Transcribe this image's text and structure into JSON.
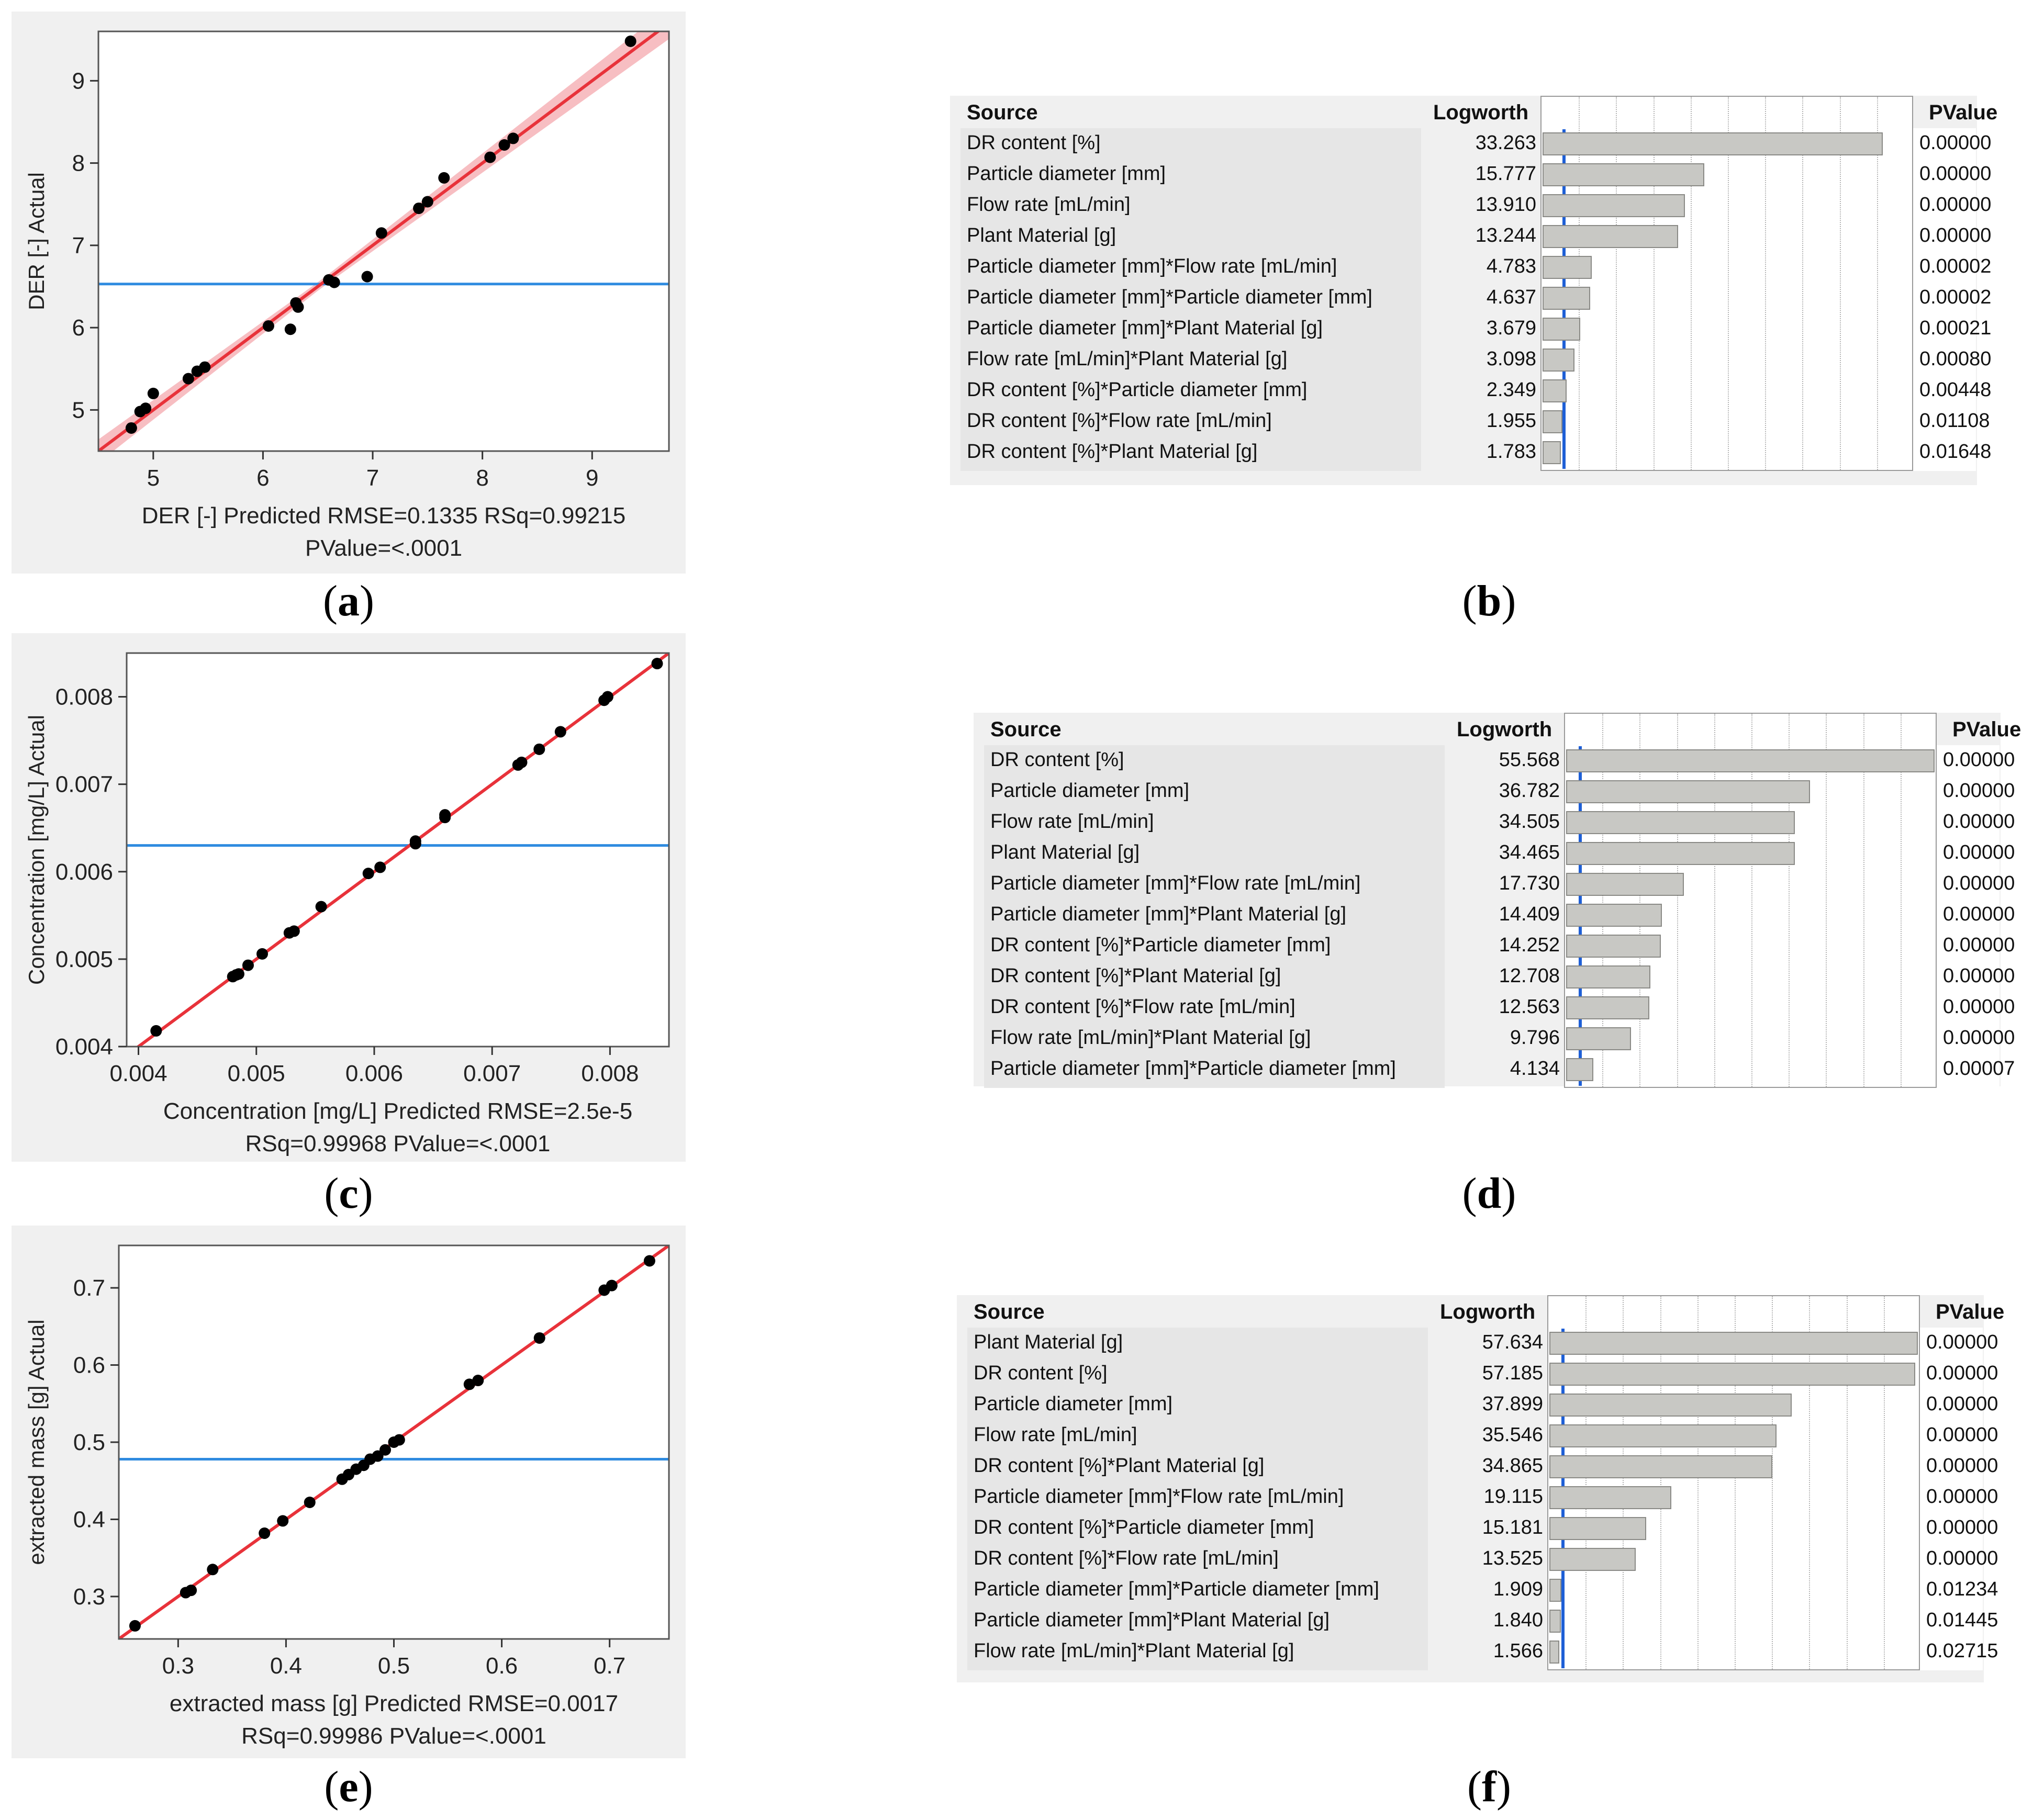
{
  "chart_data": [
    {
      "panel": "a",
      "type": "scatter",
      "ylabel": "DER [-] Actual",
      "xlabel": "DER [-] Predicted",
      "stats_line1": "DER [-] Predicted RMSE=0.1335 RSq=0.99215",
      "stats_line2": "PValue=<.0001",
      "xlim": [
        4.5,
        9.7
      ],
      "ylim": [
        4.5,
        9.6
      ],
      "xticks": [
        5,
        6,
        7,
        8,
        9
      ],
      "yticks": [
        5,
        6,
        7,
        8,
        9
      ],
      "mean_line": 6.53,
      "fit_line": [
        [
          4.5,
          4.5
        ],
        [
          9.7,
          9.7
        ]
      ],
      "confidence_band": true,
      "points": [
        [
          4.8,
          4.78
        ],
        [
          4.88,
          4.98
        ],
        [
          4.93,
          5.02
        ],
        [
          5.0,
          5.2
        ],
        [
          5.32,
          5.38
        ],
        [
          5.4,
          5.47
        ],
        [
          5.47,
          5.52
        ],
        [
          6.05,
          6.02
        ],
        [
          6.25,
          5.98
        ],
        [
          6.3,
          6.3
        ],
        [
          6.32,
          6.25
        ],
        [
          6.6,
          6.58
        ],
        [
          6.65,
          6.55
        ],
        [
          6.95,
          6.62
        ],
        [
          7.08,
          7.15
        ],
        [
          7.42,
          7.45
        ],
        [
          7.5,
          7.53
        ],
        [
          7.65,
          7.82
        ],
        [
          8.07,
          8.07
        ],
        [
          8.2,
          8.22
        ],
        [
          8.28,
          8.3
        ],
        [
          9.35,
          9.48
        ]
      ]
    },
    {
      "panel": "c",
      "type": "scatter",
      "ylabel": "Concentration [mg/L] Actual",
      "xlabel": "Concentration [mg/L] Predicted",
      "stats_line1": "Concentration [mg/L] Predicted RMSE=2.5e-5",
      "stats_line2": "RSq=0.99968 PValue=<.0001",
      "xlim": [
        0.0039,
        0.0085
      ],
      "ylim": [
        0.004,
        0.0085
      ],
      "xticks": [
        "0.004",
        "0.005",
        "0.006",
        "0.007",
        "0.008"
      ],
      "xtick_values": [
        0.004,
        0.005,
        0.006,
        0.007,
        0.008
      ],
      "yticks": [
        "0.004",
        "0.005",
        "0.006",
        "0.007",
        "0.008"
      ],
      "ytick_values": [
        0.004,
        0.005,
        0.006,
        0.007,
        0.008
      ],
      "mean_line": 0.0063,
      "fit_line": [
        [
          0.0039,
          0.0039
        ],
        [
          0.0085,
          0.0085
        ]
      ],
      "confidence_band": false,
      "points": [
        [
          0.00415,
          0.00418
        ],
        [
          0.0048,
          0.0048
        ],
        [
          0.00483,
          0.00482
        ],
        [
          0.00485,
          0.00483
        ],
        [
          0.00493,
          0.00493
        ],
        [
          0.00505,
          0.00506
        ],
        [
          0.00528,
          0.0053
        ],
        [
          0.00532,
          0.00532
        ],
        [
          0.00555,
          0.0056
        ],
        [
          0.00595,
          0.00598
        ],
        [
          0.00605,
          0.00605
        ],
        [
          0.00635,
          0.00632
        ],
        [
          0.00635,
          0.00635
        ],
        [
          0.0066,
          0.00662
        ],
        [
          0.0066,
          0.00665
        ],
        [
          0.00722,
          0.00722
        ],
        [
          0.00725,
          0.00725
        ],
        [
          0.0074,
          0.0074
        ],
        [
          0.00758,
          0.0076
        ],
        [
          0.00795,
          0.00796
        ],
        [
          0.00798,
          0.008
        ],
        [
          0.0084,
          0.00838
        ]
      ]
    },
    {
      "panel": "e",
      "type": "scatter",
      "ylabel": "extracted mass [g] Actual",
      "xlabel": "extracted mass [g] Predicted",
      "stats_line1": "extracted mass [g] Predicted RMSE=0.0017",
      "stats_line2": "RSq=0.99986 PValue=<.0001",
      "xlim": [
        0.245,
        0.755
      ],
      "ylim": [
        0.245,
        0.755
      ],
      "xticks": [
        "0.3",
        "0.4",
        "0.5",
        "0.6",
        "0.7"
      ],
      "xtick_values": [
        0.3,
        0.4,
        0.5,
        0.6,
        0.7
      ],
      "yticks": [
        "0.3",
        "0.4",
        "0.5",
        "0.6",
        "0.7"
      ],
      "ytick_values": [
        0.3,
        0.4,
        0.5,
        0.6,
        0.7
      ],
      "mean_line": 0.478,
      "fit_line": [
        [
          0.245,
          0.245
        ],
        [
          0.755,
          0.755
        ]
      ],
      "confidence_band": false,
      "points": [
        [
          0.26,
          0.262
        ],
        [
          0.307,
          0.305
        ],
        [
          0.312,
          0.308
        ],
        [
          0.332,
          0.335
        ],
        [
          0.38,
          0.382
        ],
        [
          0.397,
          0.398
        ],
        [
          0.422,
          0.422
        ],
        [
          0.452,
          0.452
        ],
        [
          0.458,
          0.458
        ],
        [
          0.465,
          0.465
        ],
        [
          0.472,
          0.47
        ],
        [
          0.478,
          0.478
        ],
        [
          0.485,
          0.482
        ],
        [
          0.492,
          0.49
        ],
        [
          0.5,
          0.5
        ],
        [
          0.505,
          0.503
        ],
        [
          0.57,
          0.575
        ],
        [
          0.578,
          0.58
        ],
        [
          0.635,
          0.635
        ],
        [
          0.695,
          0.697
        ],
        [
          0.702,
          0.703
        ],
        [
          0.737,
          0.735
        ]
      ]
    },
    {
      "panel": "b",
      "type": "table",
      "headers": {
        "source": "Source",
        "logworth": "Logworth",
        "pvalue": "PValue"
      },
      "bar_max": 36,
      "rows": [
        {
          "source": "DR content [%]",
          "logworth": "33.263",
          "value": 33.263,
          "pvalue": "0.00000"
        },
        {
          "source": "Particle diameter [mm]",
          "logworth": "15.777",
          "value": 15.777,
          "pvalue": "0.00000"
        },
        {
          "source": "Flow rate [mL/min]",
          "logworth": "13.910",
          "value": 13.91,
          "pvalue": "0.00000"
        },
        {
          "source": "Plant Material [g]",
          "logworth": "13.244",
          "value": 13.244,
          "pvalue": "0.00000"
        },
        {
          "source": "Particle diameter [mm]*Flow rate [mL/min]",
          "logworth": "4.783",
          "value": 4.783,
          "pvalue": "0.00002"
        },
        {
          "source": "Particle diameter [mm]*Particle diameter [mm]",
          "logworth": "4.637",
          "value": 4.637,
          "pvalue": "0.00002"
        },
        {
          "source": "Particle diameter [mm]*Plant Material [g]",
          "logworth": "3.679",
          "value": 3.679,
          "pvalue": "0.00021"
        },
        {
          "source": "Flow rate [mL/min]*Plant Material [g]",
          "logworth": "3.098",
          "value": 3.098,
          "pvalue": "0.00080"
        },
        {
          "source": "DR content [%]*Particle diameter [mm]",
          "logworth": "2.349",
          "value": 2.349,
          "pvalue": "0.00448"
        },
        {
          "source": "DR content [%]*Flow rate [mL/min]",
          "logworth": "1.955",
          "value": 1.955,
          "pvalue": "0.01108"
        },
        {
          "source": "DR content [%]*Plant Material [g]",
          "logworth": "1.783",
          "value": 1.783,
          "pvalue": "0.01648"
        }
      ]
    },
    {
      "panel": "d",
      "type": "table",
      "headers": {
        "source": "Source",
        "logworth": "Logworth",
        "pvalue": "PValue"
      },
      "bar_max": 55.568,
      "rows": [
        {
          "source": "DR content [%]",
          "logworth": "55.568",
          "value": 55.568,
          "pvalue": "0.00000"
        },
        {
          "source": "Particle diameter [mm]",
          "logworth": "36.782",
          "value": 36.782,
          "pvalue": "0.00000"
        },
        {
          "source": "Flow rate [mL/min]",
          "logworth": "34.505",
          "value": 34.505,
          "pvalue": "0.00000"
        },
        {
          "source": "Plant Material [g]",
          "logworth": "34.465",
          "value": 34.465,
          "pvalue": "0.00000"
        },
        {
          "source": "Particle diameter [mm]*Flow rate [mL/min]",
          "logworth": "17.730",
          "value": 17.73,
          "pvalue": "0.00000"
        },
        {
          "source": "Particle diameter [mm]*Plant Material [g]",
          "logworth": "14.409",
          "value": 14.409,
          "pvalue": "0.00000"
        },
        {
          "source": "DR content [%]*Particle diameter [mm]",
          "logworth": "14.252",
          "value": 14.252,
          "pvalue": "0.00000"
        },
        {
          "source": "DR content [%]*Plant Material [g]",
          "logworth": "12.708",
          "value": 12.708,
          "pvalue": "0.00000"
        },
        {
          "source": "DR content [%]*Flow rate [mL/min]",
          "logworth": "12.563",
          "value": 12.563,
          "pvalue": "0.00000"
        },
        {
          "source": "Flow rate [mL/min]*Plant Material [g]",
          "logworth": "9.796",
          "value": 9.796,
          "pvalue": "0.00000"
        },
        {
          "source": "Particle diameter [mm]*Particle diameter [mm]",
          "logworth": "4.134",
          "value": 4.134,
          "pvalue": "0.00007"
        }
      ]
    },
    {
      "panel": "f",
      "type": "table",
      "headers": {
        "source": "Source",
        "logworth": "Logworth",
        "pvalue": "PValue"
      },
      "bar_max": 57.634,
      "rows": [
        {
          "source": "Plant Material [g]",
          "logworth": "57.634",
          "value": 57.634,
          "pvalue": "0.00000"
        },
        {
          "source": "DR content [%]",
          "logworth": "57.185",
          "value": 57.185,
          "pvalue": "0.00000"
        },
        {
          "source": "Particle diameter [mm]",
          "logworth": "37.899",
          "value": 37.899,
          "pvalue": "0.00000"
        },
        {
          "source": "Flow rate [mL/min]",
          "logworth": "35.546",
          "value": 35.546,
          "pvalue": "0.00000"
        },
        {
          "source": "DR content [%]*Plant Material [g]",
          "logworth": "34.865",
          "value": 34.865,
          "pvalue": "0.00000"
        },
        {
          "source": "Particle diameter [mm]*Flow rate [mL/min]",
          "logworth": "19.115",
          "value": 19.115,
          "pvalue": "0.00000"
        },
        {
          "source": "DR content [%]*Particle diameter [mm]",
          "logworth": "15.181",
          "value": 15.181,
          "pvalue": "0.00000"
        },
        {
          "source": "DR content [%]*Flow rate [mL/min]",
          "logworth": "13.525",
          "value": 13.525,
          "pvalue": "0.00000"
        },
        {
          "source": "Particle diameter [mm]*Particle diameter [mm]",
          "logworth": "1.909",
          "value": 1.909,
          "pvalue": "0.01234"
        },
        {
          "source": "Particle diameter [mm]*Plant Material [g]",
          "logworth": "1.840",
          "value": 1.84,
          "pvalue": "0.01445"
        },
        {
          "source": "Flow rate [mL/min]*Plant Material [g]",
          "logworth": "1.566",
          "value": 1.566,
          "pvalue": "0.02715"
        }
      ]
    }
  ],
  "panel_labels": {
    "a": "a",
    "b": "b",
    "c": "c",
    "d": "d",
    "e": "e",
    "f": "f"
  },
  "colors": {
    "fit": "#e8323a",
    "band": "#f4a3a8",
    "mean": "#2f8be0",
    "point": "#000000",
    "bar": "#c8c8c4"
  }
}
